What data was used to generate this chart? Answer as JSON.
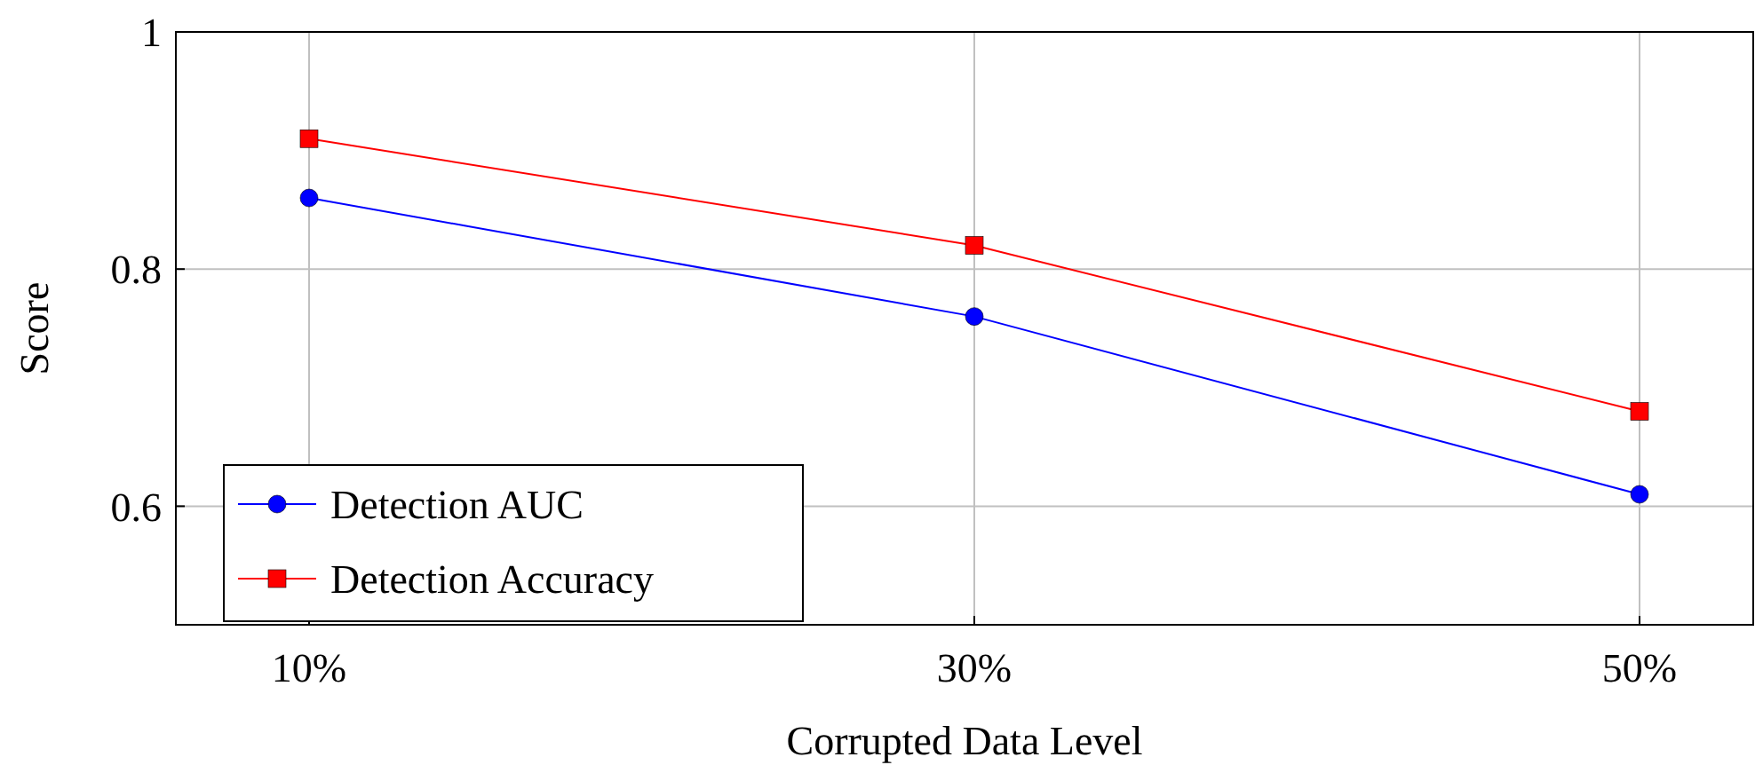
{
  "chart_data": {
    "type": "line",
    "xlabel": "Corrupted Data Level",
    "ylabel": "Score",
    "categories": [
      "10%",
      "30%",
      "50%"
    ],
    "ylim": [
      0.5,
      1
    ],
    "yticks": [
      {
        "value": 0.5,
        "label": null
      },
      {
        "value": 0.6,
        "label": "0.6"
      },
      {
        "value": 0.8,
        "label": "0.8"
      },
      {
        "value": 1,
        "label": "1"
      }
    ],
    "grid": true,
    "legend": "bottom left",
    "series": [
      {
        "name": "Detection AUC",
        "color": "#0000ff",
        "marker": "circle",
        "values": [
          0.86,
          0.76,
          0.61
        ]
      },
      {
        "name": "Detection Accuracy",
        "color": "#ff0000",
        "marker": "square",
        "values": [
          0.91,
          0.82,
          0.68
        ]
      }
    ]
  }
}
